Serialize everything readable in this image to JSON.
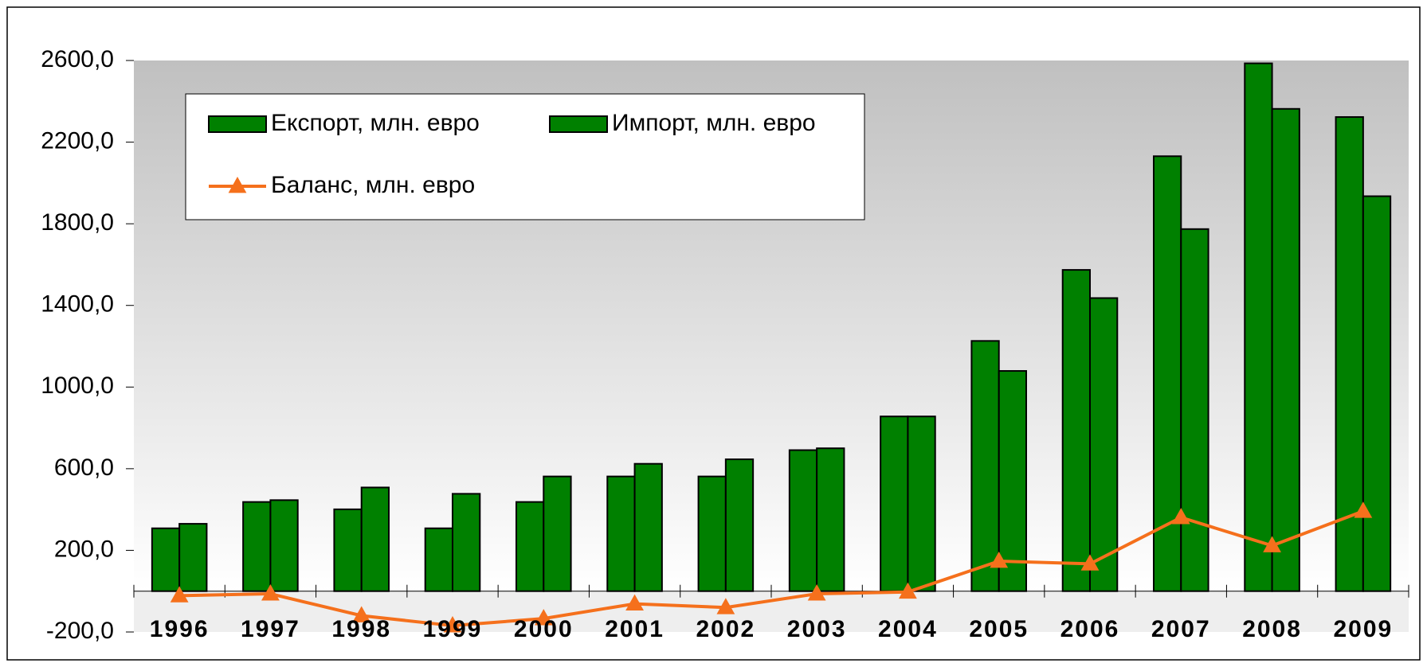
{
  "chart_data": {
    "type": "bar",
    "categories": [
      "1996",
      "1997",
      "1998",
      "1999",
      "2000",
      "2001",
      "2002",
      "2003",
      "2004",
      "2005",
      "2006",
      "2007",
      "2008",
      "2009"
    ],
    "series": [
      {
        "name": "Експорт, млн. евро",
        "color": "#008000",
        "values": [
          308,
          437,
          401,
          308,
          437,
          562,
          562,
          691,
          856,
          1226,
          1574,
          2131,
          2586,
          2323
        ]
      },
      {
        "name": "Импорт, млн. евро",
        "color": "#008000",
        "values": [
          330,
          446,
          508,
          477,
          562,
          624,
          646,
          700,
          856,
          1079,
          1436,
          1774,
          2363,
          1935
        ]
      },
      {
        "name": "Баланс, млн. евро",
        "color": "#f5701c",
        "type": "line",
        "values": [
          -22,
          -13,
          -120,
          -169,
          -134,
          -62,
          -80,
          -13,
          -4,
          147,
          134,
          361,
          223,
          392
        ]
      }
    ],
    "ylim": [
      -200,
      2600
    ],
    "yticks": [
      {
        "value": -200,
        "label": "-200,0"
      },
      {
        "value": 200,
        "label": "200,0"
      },
      {
        "value": 600,
        "label": "600,0"
      },
      {
        "value": 1000,
        "label": "1000,0"
      },
      {
        "value": 1400,
        "label": "1400,0"
      },
      {
        "value": 1800,
        "label": "1800,0"
      },
      {
        "value": 2200,
        "label": "2200,0"
      },
      {
        "value": 2600,
        "label": "2600,0"
      }
    ],
    "legend": "top-left"
  }
}
